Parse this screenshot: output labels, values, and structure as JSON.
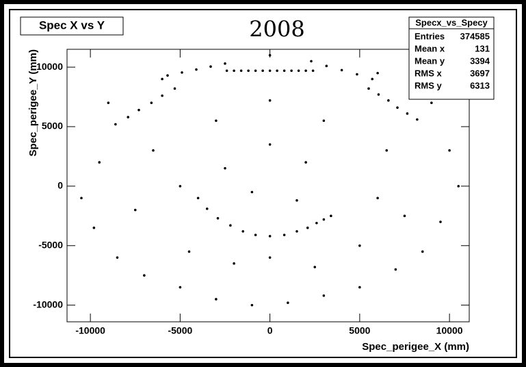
{
  "chart_data": {
    "type": "scatter",
    "title": "Spec X vs Y",
    "annotation": "2008",
    "x_label": "Spec_perigee_X (mm)",
    "y_label": "Spec_perigee_Y (mm)",
    "color": "#000000",
    "xlim": [
      -11300,
      11100
    ],
    "ylim": [
      -11400,
      11500
    ],
    "xticks": [
      -10000,
      -5000,
      0,
      5000,
      10000
    ],
    "yticks": [
      -10000,
      -5000,
      0,
      5000,
      10000
    ],
    "stats": {
      "title": "Specx_vs_Specy",
      "rows": [
        [
          "Entries",
          374585
        ],
        [
          "Mean x",
          131
        ],
        [
          "Mean y",
          3394
        ],
        [
          "RMS x",
          3697
        ],
        [
          "RMS y",
          6313
        ]
      ]
    },
    "x": [
      -2400,
      -2000,
      -1600,
      -1200,
      -800,
      -400,
      0,
      400,
      800,
      1200,
      1600,
      2000,
      2400,
      -5700,
      -4900,
      -4100,
      -3300,
      -2500,
      -8600,
      -7900,
      -7300,
      -6600,
      -6000,
      -5300,
      2300,
      3150,
      4000,
      4850,
      5700,
      5500,
      6050,
      6600,
      7100,
      7650,
      8200,
      -4000,
      -3500,
      -2900,
      -2200,
      -1500,
      -800,
      0,
      800,
      1500,
      2100,
      2600,
      3000,
      3400,
      -9500,
      -10500,
      -9800,
      -8500,
      -7000,
      -5000,
      -3000,
      -1000,
      1000,
      3000,
      5000,
      7000,
      8500,
      9500,
      10500,
      10000,
      9000,
      -9000,
      -6500,
      -5000,
      -4500,
      -2000,
      0,
      2500,
      5000,
      6000,
      6500,
      3000,
      0,
      -3000,
      -2500,
      2000,
      0,
      -1000,
      1500,
      -7500,
      7500,
      -6000,
      6000,
      0
    ],
    "values": [
      9700,
      9700,
      9700,
      9700,
      9700,
      9700,
      9700,
      9700,
      9700,
      9700,
      9700,
      9700,
      9700,
      9300,
      9550,
      9800,
      10050,
      10300,
      5200,
      5800,
      6400,
      7000,
      7600,
      8200,
      10500,
      10100,
      9750,
      9400,
      9000,
      8200,
      7700,
      7200,
      6600,
      6100,
      5600,
      -1000,
      -1900,
      -2700,
      -3300,
      -3800,
      -4100,
      -4200,
      -4100,
      -3800,
      -3500,
      -3100,
      -2800,
      -2500,
      2000,
      -1000,
      -3500,
      -6000,
      -7500,
      -8500,
      -9500,
      -10000,
      -9800,
      -9200,
      -8500,
      -7000,
      -5500,
      -3000,
      0,
      3000,
      7000,
      7000,
      3000,
      0,
      -5500,
      -6500,
      -6000,
      -6800,
      -5000,
      -1000,
      3000,
      5500,
      7200,
      5500,
      1500,
      2000,
      3500,
      -500,
      -1200,
      -2000,
      -2500,
      9000,
      9500,
      11000
    ]
  }
}
